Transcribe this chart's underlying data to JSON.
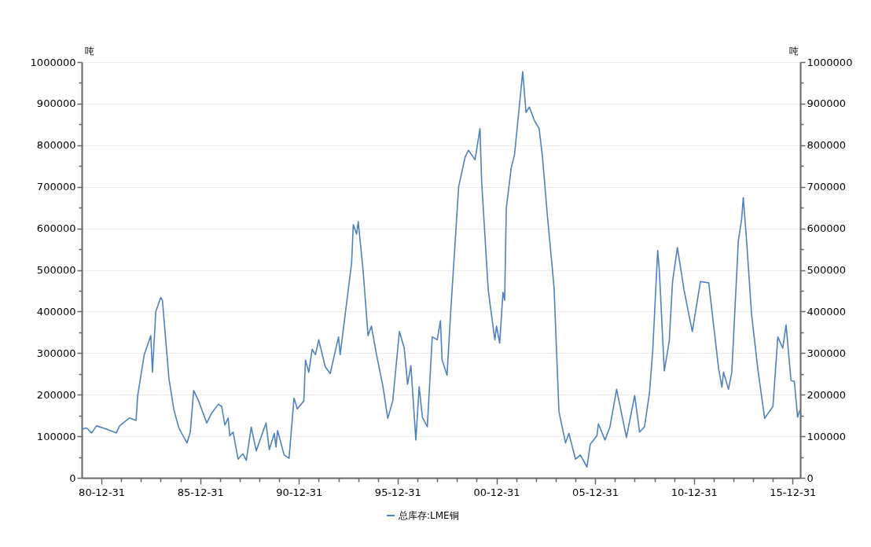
{
  "chart_data": {
    "type": "line",
    "ylabel": "吨",
    "y2label": "吨",
    "legend": "bottom",
    "grid": "y",
    "xlim": [
      "1980-01-01",
      "2016-05-20"
    ],
    "xticks": [
      {
        "value": "1980-12-31",
        "label": "80-12-31"
      },
      {
        "value": "1981-12-31",
        "label": null
      },
      {
        "value": "1982-12-31",
        "label": null
      },
      {
        "value": "1983-12-31",
        "label": null
      },
      {
        "value": "1984-12-31",
        "label": null
      },
      {
        "value": "1985-12-31",
        "label": "85-12-31"
      },
      {
        "value": "1986-12-31",
        "label": null
      },
      {
        "value": "1987-12-31",
        "label": null
      },
      {
        "value": "1988-12-31",
        "label": null
      },
      {
        "value": "1989-12-31",
        "label": null
      },
      {
        "value": "1990-12-31",
        "label": "90-12-31"
      },
      {
        "value": "1991-12-31",
        "label": null
      },
      {
        "value": "1992-12-31",
        "label": null
      },
      {
        "value": "1993-12-31",
        "label": null
      },
      {
        "value": "1994-12-31",
        "label": null
      },
      {
        "value": "1995-12-31",
        "label": "95-12-31"
      },
      {
        "value": "1996-12-31",
        "label": null
      },
      {
        "value": "1997-12-31",
        "label": null
      },
      {
        "value": "1998-12-31",
        "label": null
      },
      {
        "value": "1999-12-31",
        "label": null
      },
      {
        "value": "2000-12-31",
        "label": "00-12-31"
      },
      {
        "value": "2001-12-31",
        "label": null
      },
      {
        "value": "2002-12-31",
        "label": null
      },
      {
        "value": "2003-12-31",
        "label": null
      },
      {
        "value": "2004-12-31",
        "label": null
      },
      {
        "value": "2005-12-31",
        "label": "05-12-31"
      },
      {
        "value": "2006-12-31",
        "label": null
      },
      {
        "value": "2007-12-31",
        "label": null
      },
      {
        "value": "2008-12-31",
        "label": null
      },
      {
        "value": "2009-12-31",
        "label": null
      },
      {
        "value": "2010-12-31",
        "label": "10-12-31"
      },
      {
        "value": "2011-12-31",
        "label": null
      },
      {
        "value": "2012-12-31",
        "label": null
      },
      {
        "value": "2013-12-31",
        "label": null
      },
      {
        "value": "2014-12-31",
        "label": null
      },
      {
        "value": "2015-12-31",
        "label": "15-12-31"
      }
    ],
    "ylim": [
      0,
      1000000
    ],
    "yticks": [
      0,
      {
        "value": 50000,
        "label": null
      },
      100000,
      {
        "value": 150000,
        "label": null
      },
      200000,
      {
        "value": 250000,
        "label": null
      },
      300000,
      {
        "value": 350000,
        "label": null
      },
      400000,
      {
        "value": 450000,
        "label": null
      },
      500000,
      {
        "value": 550000,
        "label": null
      },
      600000,
      {
        "value": 650000,
        "label": null
      },
      700000,
      {
        "value": 750000,
        "label": null
      },
      800000,
      {
        "value": 850000,
        "label": null
      },
      900000,
      {
        "value": 950000,
        "label": null
      },
      1000000
    ],
    "y2lim": [
      0,
      1000000
    ],
    "y2ticks": [
      0,
      {
        "value": 50000,
        "label": null
      },
      100000,
      {
        "value": 150000,
        "label": null
      },
      200000,
      {
        "value": 250000,
        "label": null
      },
      300000,
      {
        "value": 350000,
        "label": null
      },
      400000,
      {
        "value": 450000,
        "label": null
      },
      500000,
      {
        "value": 550000,
        "label": null
      },
      600000,
      {
        "value": 650000,
        "label": null
      },
      700000,
      {
        "value": 750000,
        "label": null
      },
      800000,
      {
        "value": 850000,
        "label": null
      },
      900000,
      {
        "value": 950000,
        "label": null
      },
      1000000
    ],
    "x": [
      "1980-01",
      "1980-04",
      "1980-07",
      "1980-10",
      "1981-04",
      "1981-10",
      "1981-12",
      "1982-06",
      "1982-10",
      "1982-11",
      "1983-03",
      "1983-07",
      "1983-08",
      "1983-10",
      "1984-01",
      "1984-02",
      "1984-06",
      "1984-09",
      "1984-12",
      "1985-05",
      "1985-07",
      "1985-09",
      "1985-12",
      "1986-05",
      "1986-08",
      "1986-12",
      "1987-02",
      "1987-04",
      "1987-06",
      "1987-07",
      "1987-09",
      "1987-12",
      "1988-03",
      "1988-05",
      "1988-08",
      "1988-11",
      "1989-05",
      "1989-07",
      "1989-10",
      "1989-11",
      "1989-12",
      "1990-04",
      "1990-07",
      "1990-10",
      "1990-12",
      "1991-04",
      "1991-05",
      "1991-07",
      "1991-09",
      "1991-11",
      "1992-01",
      "1992-05",
      "1992-08",
      "1993-01",
      "1993-02",
      "1993-09",
      "1993-10",
      "1993-12",
      "1994-01",
      "1994-04",
      "1994-06",
      "1994-07",
      "1994-09",
      "1994-12",
      "1995-04",
      "1995-07",
      "1995-10",
      "1996-02",
      "1996-05",
      "1996-07",
      "1996-09",
      "1996-12",
      "1997-02",
      "1997-04",
      "1997-07",
      "1997-10",
      "1998-01",
      "1998-03",
      "1998-04",
      "1998-07",
      "1998-09",
      "1999-02",
      "1999-06",
      "1999-08",
      "1999-12",
      "2000-03",
      "2000-04",
      "2000-08",
      "2000-12",
      "2001-01",
      "2001-03",
      "2001-05",
      "2001-06",
      "2001-07",
      "2001-10",
      "2001-12",
      "2002-03",
      "2002-05",
      "2002-07",
      "2002-09",
      "2002-12",
      "2003-03",
      "2003-05",
      "2003-08",
      "2003-12",
      "2004-03",
      "2004-07",
      "2004-09",
      "2005-01",
      "2005-04",
      "2005-08",
      "2005-10",
      "2006-02",
      "2006-03",
      "2006-07",
      "2006-10",
      "2007-02",
      "2007-08",
      "2008-01",
      "2008-04",
      "2008-07",
      "2008-10",
      "2008-12",
      "2009-03",
      "2009-04",
      "2009-07",
      "2009-10",
      "2009-12",
      "2010-03",
      "2010-07",
      "2010-12",
      "2011-05",
      "2011-10",
      "2012-04",
      "2012-06",
      "2012-07",
      "2012-10",
      "2012-12",
      "2013-04",
      "2013-06",
      "2013-07",
      "2013-09",
      "2013-12",
      "2014-04",
      "2014-08",
      "2015-01",
      "2015-04",
      "2015-07",
      "2015-09",
      "2015-12",
      "2016-02",
      "2016-04",
      "2016-05-10"
    ],
    "series": [
      {
        "name": "总库存:LME铜",
        "color": "#4f81bd",
        "values": [
          117000,
          120000,
          108000,
          125000,
          117000,
          108000,
          125000,
          144000,
          138000,
          198000,
          296000,
          342000,
          254000,
          400000,
          434000,
          427000,
          238000,
          163000,
          120000,
          84000,
          110000,
          210000,
          185000,
          132000,
          156000,
          177000,
          172000,
          127000,
          144000,
          101000,
          110000,
          45000,
          58000,
          42000,
          122000,
          65000,
          132000,
          68000,
          107000,
          74000,
          114000,
          55000,
          47000,
          192000,
          166000,
          185000,
          283000,
          254000,
          309000,
          296000,
          332000,
          267000,
          251000,
          339000,
          296000,
          518000,
          609000,
          586000,
          616000,
          498000,
          394000,
          342000,
          365000,
          299000,
          221000,
          143000,
          185000,
          352000,
          312000,
          225000,
          270000,
          91000,
          219000,
          146000,
          123000,
          339000,
          332000,
          378000,
          283000,
          247000,
          387000,
          700000,
          772000,
          788000,
          765000,
          840000,
          713000,
          452000,
          332000,
          365000,
          324000,
          446000,
          427000,
          648000,
          746000,
          778000,
          896000,
          977000,
          879000,
          892000,
          860000,
          840000,
          772000,
          629000,
          459000,
          159000,
          84000,
          107000,
          45000,
          55000,
          26000,
          81000,
          101000,
          130000,
          91000,
          123000,
          213000,
          97000,
          198000,
          110000,
          123000,
          205000,
          309000,
          547000,
          498000,
          257000,
          329000,
          472000,
          554000,
          452000,
          352000,
          472000,
          469000,
          263000,
          218000,
          254000,
          213000,
          254000,
          570000,
          622000,
          674000,
          570000,
          394000,
          257000,
          143000,
          172000,
          339000,
          312000,
          368000,
          234000,
          232000,
          146000,
          162000
        ]
      }
    ]
  }
}
